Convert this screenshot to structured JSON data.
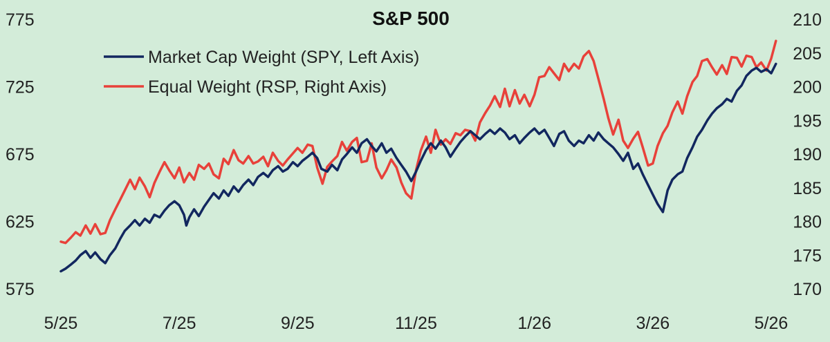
{
  "chart_data": {
    "type": "line",
    "title": "S&P 500",
    "xlabel": "",
    "x_ticks": [
      "5/25",
      "7/25",
      "9/25",
      "11/25",
      "1/26",
      "3/26",
      "5/26"
    ],
    "x_tick_months": [
      0,
      2,
      4,
      6,
      8,
      10,
      12
    ],
    "x_range_months": [
      0,
      12
    ],
    "y_left": {
      "label": "",
      "range": [
        575,
        775
      ],
      "ticks": [
        575,
        625,
        675,
        725,
        775
      ]
    },
    "y_right": {
      "label": "",
      "range": [
        170,
        210
      ],
      "ticks": [
        170,
        175,
        180,
        185,
        190,
        195,
        200,
        205,
        210
      ]
    },
    "grid": false,
    "legend_position": "top-left",
    "colors": {
      "background": "#d3ecd9",
      "spy": "#12275f",
      "rsp": "#e8413a"
    },
    "series": [
      {
        "name": "Market Cap Weight (SPY, Left Axis)",
        "axis": "left",
        "color": "#12275f",
        "points": [
          [
            0.0,
            588
          ],
          [
            0.08,
            590
          ],
          [
            0.17,
            593
          ],
          [
            0.25,
            596
          ],
          [
            0.33,
            600
          ],
          [
            0.42,
            603
          ],
          [
            0.5,
            598
          ],
          [
            0.58,
            602
          ],
          [
            0.67,
            597
          ],
          [
            0.75,
            594
          ],
          [
            0.83,
            600
          ],
          [
            0.92,
            605
          ],
          [
            1.0,
            612
          ],
          [
            1.08,
            618
          ],
          [
            1.17,
            622
          ],
          [
            1.25,
            626
          ],
          [
            1.33,
            622
          ],
          [
            1.42,
            627
          ],
          [
            1.5,
            624
          ],
          [
            1.58,
            630
          ],
          [
            1.67,
            628
          ],
          [
            1.75,
            633
          ],
          [
            1.83,
            637
          ],
          [
            1.92,
            640
          ],
          [
            2.0,
            637
          ],
          [
            2.08,
            630
          ],
          [
            2.12,
            622
          ],
          [
            2.17,
            628
          ],
          [
            2.25,
            634
          ],
          [
            2.33,
            629
          ],
          [
            2.42,
            636
          ],
          [
            2.5,
            641
          ],
          [
            2.58,
            646
          ],
          [
            2.67,
            642
          ],
          [
            2.75,
            648
          ],
          [
            2.83,
            644
          ],
          [
            2.92,
            651
          ],
          [
            3.0,
            647
          ],
          [
            3.08,
            652
          ],
          [
            3.17,
            656
          ],
          [
            3.25,
            652
          ],
          [
            3.33,
            658
          ],
          [
            3.42,
            661
          ],
          [
            3.5,
            658
          ],
          [
            3.58,
            663
          ],
          [
            3.67,
            666
          ],
          [
            3.75,
            662
          ],
          [
            3.83,
            664
          ],
          [
            3.92,
            669
          ],
          [
            4.0,
            666
          ],
          [
            4.08,
            670
          ],
          [
            4.17,
            673
          ],
          [
            4.25,
            676
          ],
          [
            4.33,
            672
          ],
          [
            4.4,
            664
          ],
          [
            4.5,
            662
          ],
          [
            4.58,
            667
          ],
          [
            4.67,
            663
          ],
          [
            4.75,
            671
          ],
          [
            4.83,
            675
          ],
          [
            4.92,
            680
          ],
          [
            5.0,
            676
          ],
          [
            5.08,
            683
          ],
          [
            5.17,
            686
          ],
          [
            5.25,
            681
          ],
          [
            5.33,
            677
          ],
          [
            5.42,
            683
          ],
          [
            5.5,
            676
          ],
          [
            5.58,
            679
          ],
          [
            5.67,
            672
          ],
          [
            5.75,
            667
          ],
          [
            5.83,
            662
          ],
          [
            5.92,
            655
          ],
          [
            6.0,
            662
          ],
          [
            6.08,
            670
          ],
          [
            6.17,
            678
          ],
          [
            6.25,
            683
          ],
          [
            6.33,
            679
          ],
          [
            6.42,
            685
          ],
          [
            6.5,
            680
          ],
          [
            6.58,
            673
          ],
          [
            6.67,
            679
          ],
          [
            6.75,
            684
          ],
          [
            6.83,
            688
          ],
          [
            6.92,
            692
          ],
          [
            7.0,
            689
          ],
          [
            7.08,
            686
          ],
          [
            7.17,
            690
          ],
          [
            7.25,
            693
          ],
          [
            7.33,
            690
          ],
          [
            7.42,
            694
          ],
          [
            7.5,
            691
          ],
          [
            7.58,
            686
          ],
          [
            7.67,
            689
          ],
          [
            7.75,
            683
          ],
          [
            7.83,
            687
          ],
          [
            7.92,
            691
          ],
          [
            8.0,
            694
          ],
          [
            8.08,
            690
          ],
          [
            8.17,
            693
          ],
          [
            8.25,
            687
          ],
          [
            8.33,
            681
          ],
          [
            8.42,
            690
          ],
          [
            8.5,
            692
          ],
          [
            8.58,
            685
          ],
          [
            8.67,
            681
          ],
          [
            8.75,
            685
          ],
          [
            8.83,
            683
          ],
          [
            8.92,
            689
          ],
          [
            9.0,
            685
          ],
          [
            9.08,
            691
          ],
          [
            9.17,
            686
          ],
          [
            9.25,
            683
          ],
          [
            9.33,
            680
          ],
          [
            9.42,
            675
          ],
          [
            9.5,
            670
          ],
          [
            9.58,
            676
          ],
          [
            9.67,
            664
          ],
          [
            9.75,
            668
          ],
          [
            9.83,
            660
          ],
          [
            9.92,
            652
          ],
          [
            10.0,
            645
          ],
          [
            10.08,
            638
          ],
          [
            10.17,
            632
          ],
          [
            10.25,
            648
          ],
          [
            10.33,
            656
          ],
          [
            10.42,
            660
          ],
          [
            10.5,
            662
          ],
          [
            10.58,
            672
          ],
          [
            10.67,
            680
          ],
          [
            10.75,
            688
          ],
          [
            10.83,
            693
          ],
          [
            10.92,
            700
          ],
          [
            11.0,
            705
          ],
          [
            11.08,
            709
          ],
          [
            11.17,
            712
          ],
          [
            11.25,
            716
          ],
          [
            11.33,
            714
          ],
          [
            11.42,
            722
          ],
          [
            11.5,
            726
          ],
          [
            11.58,
            733
          ],
          [
            11.67,
            737
          ],
          [
            11.75,
            739
          ],
          [
            11.83,
            736
          ],
          [
            11.92,
            738
          ],
          [
            12.0,
            735
          ],
          [
            12.08,
            742
          ]
        ]
      },
      {
        "name": "Equal Weight (RSP, Right Axis)",
        "axis": "right",
        "color": "#e8413a",
        "points": [
          [
            0.0,
            177.0
          ],
          [
            0.08,
            176.8
          ],
          [
            0.17,
            177.6
          ],
          [
            0.25,
            178.4
          ],
          [
            0.33,
            177.9
          ],
          [
            0.42,
            179.4
          ],
          [
            0.5,
            178.2
          ],
          [
            0.58,
            179.6
          ],
          [
            0.67,
            178.1
          ],
          [
            0.75,
            178.3
          ],
          [
            0.83,
            180.2
          ],
          [
            0.92,
            181.8
          ],
          [
            1.0,
            183.2
          ],
          [
            1.08,
            184.6
          ],
          [
            1.17,
            186.2
          ],
          [
            1.25,
            184.8
          ],
          [
            1.33,
            186.5
          ],
          [
            1.42,
            185.2
          ],
          [
            1.5,
            183.6
          ],
          [
            1.58,
            185.7
          ],
          [
            1.67,
            187.4
          ],
          [
            1.75,
            188.8
          ],
          [
            1.83,
            187.6
          ],
          [
            1.92,
            186.4
          ],
          [
            2.0,
            188.0
          ],
          [
            2.08,
            185.8
          ],
          [
            2.17,
            187.2
          ],
          [
            2.25,
            186.2
          ],
          [
            2.33,
            188.4
          ],
          [
            2.42,
            187.8
          ],
          [
            2.5,
            188.6
          ],
          [
            2.58,
            187.0
          ],
          [
            2.67,
            186.4
          ],
          [
            2.75,
            189.3
          ],
          [
            2.83,
            188.5
          ],
          [
            2.92,
            190.6
          ],
          [
            3.0,
            189.1
          ],
          [
            3.08,
            188.6
          ],
          [
            3.17,
            189.7
          ],
          [
            3.25,
            188.6
          ],
          [
            3.33,
            188.9
          ],
          [
            3.42,
            189.6
          ],
          [
            3.5,
            188.2
          ],
          [
            3.58,
            190.2
          ],
          [
            3.67,
            189.0
          ],
          [
            3.75,
            188.3
          ],
          [
            3.83,
            189.2
          ],
          [
            3.92,
            190.1
          ],
          [
            4.0,
            190.9
          ],
          [
            4.08,
            190.2
          ],
          [
            4.17,
            191.4
          ],
          [
            4.25,
            191.2
          ],
          [
            4.33,
            188.0
          ],
          [
            4.42,
            185.6
          ],
          [
            4.5,
            188.1
          ],
          [
            4.58,
            188.9
          ],
          [
            4.67,
            189.7
          ],
          [
            4.75,
            191.8
          ],
          [
            4.83,
            190.5
          ],
          [
            4.92,
            191.8
          ],
          [
            5.0,
            192.4
          ],
          [
            5.08,
            188.8
          ],
          [
            5.17,
            189.0
          ],
          [
            5.25,
            191.6
          ],
          [
            5.33,
            188.0
          ],
          [
            5.42,
            186.4
          ],
          [
            5.5,
            187.6
          ],
          [
            5.58,
            189.2
          ],
          [
            5.67,
            188.0
          ],
          [
            5.75,
            185.8
          ],
          [
            5.83,
            184.2
          ],
          [
            5.92,
            183.4
          ],
          [
            6.0,
            187.6
          ],
          [
            6.08,
            190.5
          ],
          [
            6.17,
            192.6
          ],
          [
            6.25,
            190.2
          ],
          [
            6.33,
            193.6
          ],
          [
            6.42,
            191.4
          ],
          [
            6.5,
            192.2
          ],
          [
            6.58,
            191.5
          ],
          [
            6.67,
            193.1
          ],
          [
            6.75,
            192.8
          ],
          [
            6.83,
            193.6
          ],
          [
            6.92,
            193.4
          ],
          [
            7.0,
            192.0
          ],
          [
            7.08,
            194.7
          ],
          [
            7.17,
            196.1
          ],
          [
            7.25,
            197.2
          ],
          [
            7.33,
            198.6
          ],
          [
            7.42,
            197.0
          ],
          [
            7.5,
            199.7
          ],
          [
            7.58,
            197.1
          ],
          [
            7.67,
            199.5
          ],
          [
            7.75,
            197.5
          ],
          [
            7.83,
            198.8
          ],
          [
            7.92,
            197.1
          ],
          [
            8.0,
            198.8
          ],
          [
            8.08,
            201.4
          ],
          [
            8.17,
            201.6
          ],
          [
            8.25,
            202.9
          ],
          [
            8.33,
            202.0
          ],
          [
            8.42,
            201.0
          ],
          [
            8.5,
            203.4
          ],
          [
            8.58,
            202.3
          ],
          [
            8.67,
            203.4
          ],
          [
            8.75,
            202.7
          ],
          [
            8.83,
            204.5
          ],
          [
            8.92,
            205.3
          ],
          [
            9.0,
            203.8
          ],
          [
            9.08,
            201.2
          ],
          [
            9.17,
            198.2
          ],
          [
            9.25,
            195.3
          ],
          [
            9.33,
            192.9
          ],
          [
            9.42,
            195.1
          ],
          [
            9.5,
            192.0
          ],
          [
            9.58,
            190.9
          ],
          [
            9.67,
            192.3
          ],
          [
            9.75,
            193.3
          ],
          [
            9.83,
            191.0
          ],
          [
            9.92,
            188.3
          ],
          [
            10.0,
            188.6
          ],
          [
            10.08,
            191.2
          ],
          [
            10.17,
            193.1
          ],
          [
            10.25,
            194.2
          ],
          [
            10.33,
            196.2
          ],
          [
            10.42,
            197.8
          ],
          [
            10.5,
            196.0
          ],
          [
            10.58,
            198.6
          ],
          [
            10.67,
            200.7
          ],
          [
            10.75,
            201.6
          ],
          [
            10.83,
            203.8
          ],
          [
            10.92,
            204.1
          ],
          [
            11.0,
            202.9
          ],
          [
            11.08,
            201.8
          ],
          [
            11.17,
            203.2
          ],
          [
            11.25,
            201.9
          ],
          [
            11.33,
            204.4
          ],
          [
            11.42,
            204.3
          ],
          [
            11.5,
            203.0
          ],
          [
            11.58,
            204.6
          ],
          [
            11.67,
            204.4
          ],
          [
            11.75,
            202.9
          ],
          [
            11.83,
            203.6
          ],
          [
            11.92,
            202.4
          ],
          [
            12.0,
            204.2
          ],
          [
            12.08,
            206.8
          ]
        ]
      }
    ]
  }
}
